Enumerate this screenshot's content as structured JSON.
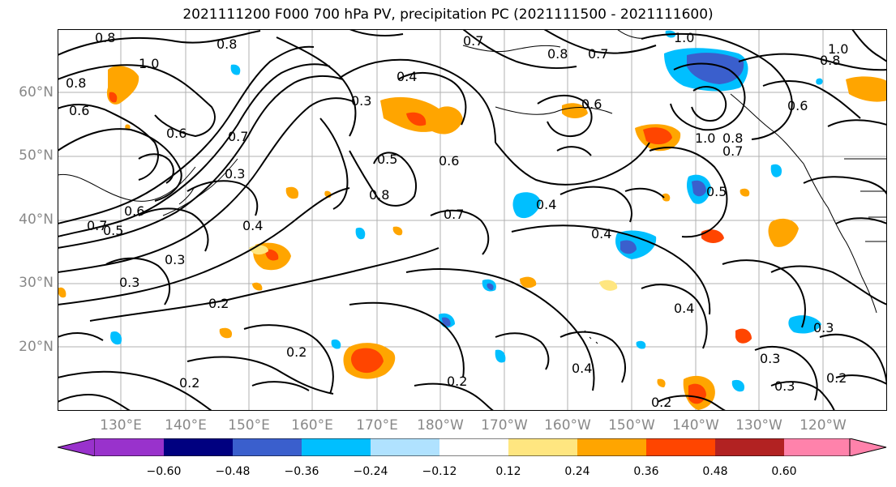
{
  "title": "2021111200 F000 700 hPa PV, precipitation PC (2021111500 - 2021111600)",
  "lat_labels": [
    "60°N",
    "50°N",
    "40°N",
    "30°N",
    "20°N"
  ],
  "lon_labels": [
    "130°E",
    "140°E",
    "150°E",
    "160°E",
    "170°E",
    "180°W",
    "170°W",
    "160°W",
    "150°W",
    "140°W",
    "130°W",
    "120°W"
  ],
  "colorbar": {
    "ticks": [
      "−0.60",
      "−0.48",
      "−0.36",
      "−0.24",
      "−0.12",
      "0.12",
      "0.24",
      "0.36",
      "0.48",
      "0.60"
    ],
    "colors": [
      "#9932cc",
      "#000080",
      "#3a5fcd",
      "#00bfff",
      "#b0e2ff",
      "#ffffff",
      "#ffe680",
      "#ffa500",
      "#ff4500",
      "#b22222",
      "#ff82ab"
    ]
  },
  "contour_labels": [
    "0.8",
    "0.8",
    "1.0",
    "0.8",
    "0.4",
    "0.3",
    "0.7",
    "0.8",
    "0.7",
    "1.0",
    "0.6",
    "0.7",
    "0.5",
    "0.6",
    "0.3",
    "0.6",
    "0.4",
    "0.5",
    "0.8",
    "0.6",
    "0.7",
    "0.4",
    "0.4",
    "0.5",
    "1.0",
    "0.3",
    "0.2",
    "0.3",
    "0.4",
    "0.2",
    "0.3",
    "0.2",
    "0.4",
    "0.2",
    "0.2",
    "0.3",
    "0.3",
    "0.2",
    "1.0",
    "0.8",
    "0.7",
    "0.6",
    "0.6",
    "0.7",
    "0.8"
  ]
}
